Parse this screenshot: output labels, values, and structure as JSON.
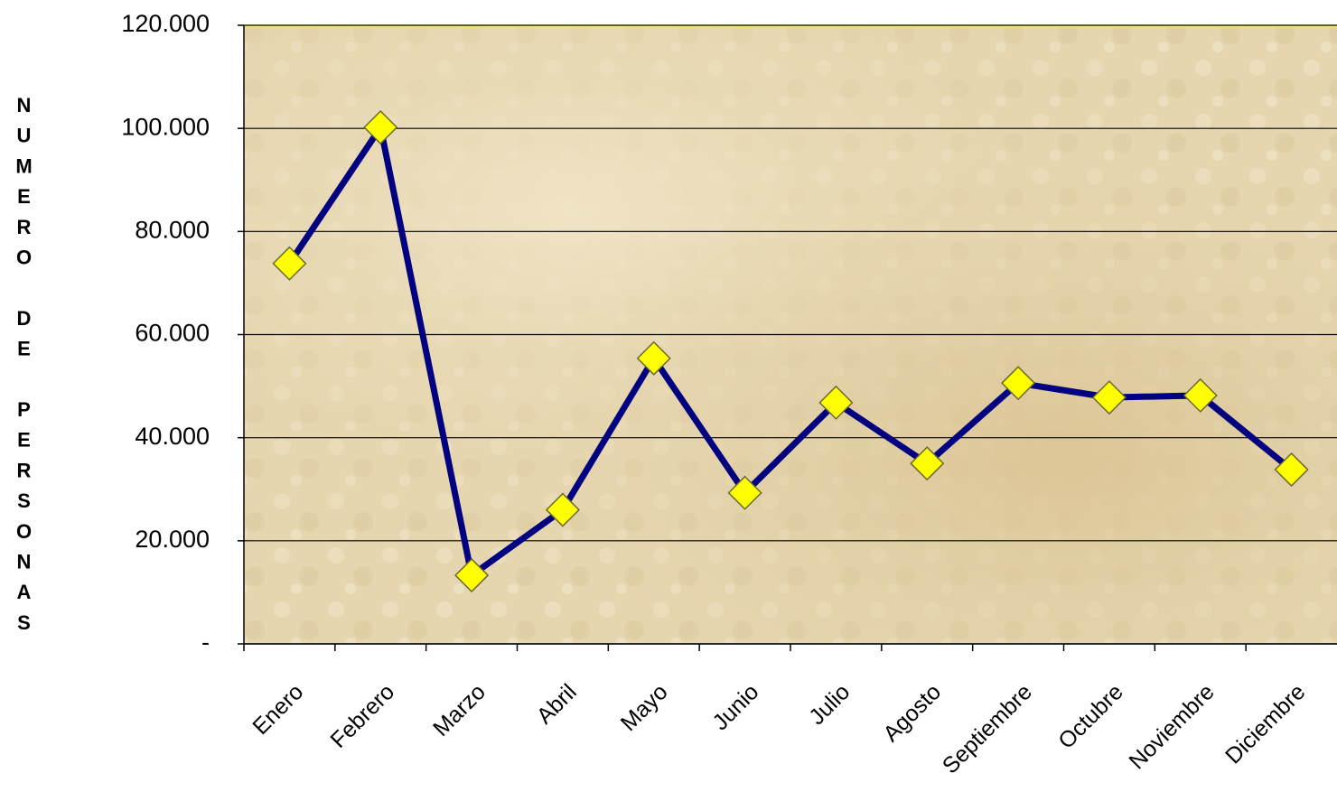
{
  "chart_data": {
    "type": "line",
    "ylabel": "NUMERO DE PERSONAS",
    "categories": [
      "Enero",
      "Febrero",
      "Marzo",
      "Abril",
      "Mayo",
      "Junio",
      "Julio",
      "Agosto",
      "Septiembre",
      "Octubre",
      "Noviembre",
      "Diciembre"
    ],
    "values": [
      73800,
      100200,
      13300,
      26000,
      55400,
      29300,
      46800,
      35000,
      50600,
      47800,
      48200,
      33800
    ],
    "color": "#000080",
    "marker_color": "#ffff00",
    "ylim": [
      0,
      120000
    ],
    "yticks": [
      {
        "value": 0,
        "label": "-"
      },
      {
        "value": 20000,
        "label": "20.000"
      },
      {
        "value": 40000,
        "label": "40.000"
      },
      {
        "value": 60000,
        "label": "60.000"
      },
      {
        "value": 80000,
        "label": "80.000"
      },
      {
        "value": 100000,
        "label": "100.000"
      },
      {
        "value": 120000,
        "label": "120.000"
      }
    ],
    "grid": true
  }
}
